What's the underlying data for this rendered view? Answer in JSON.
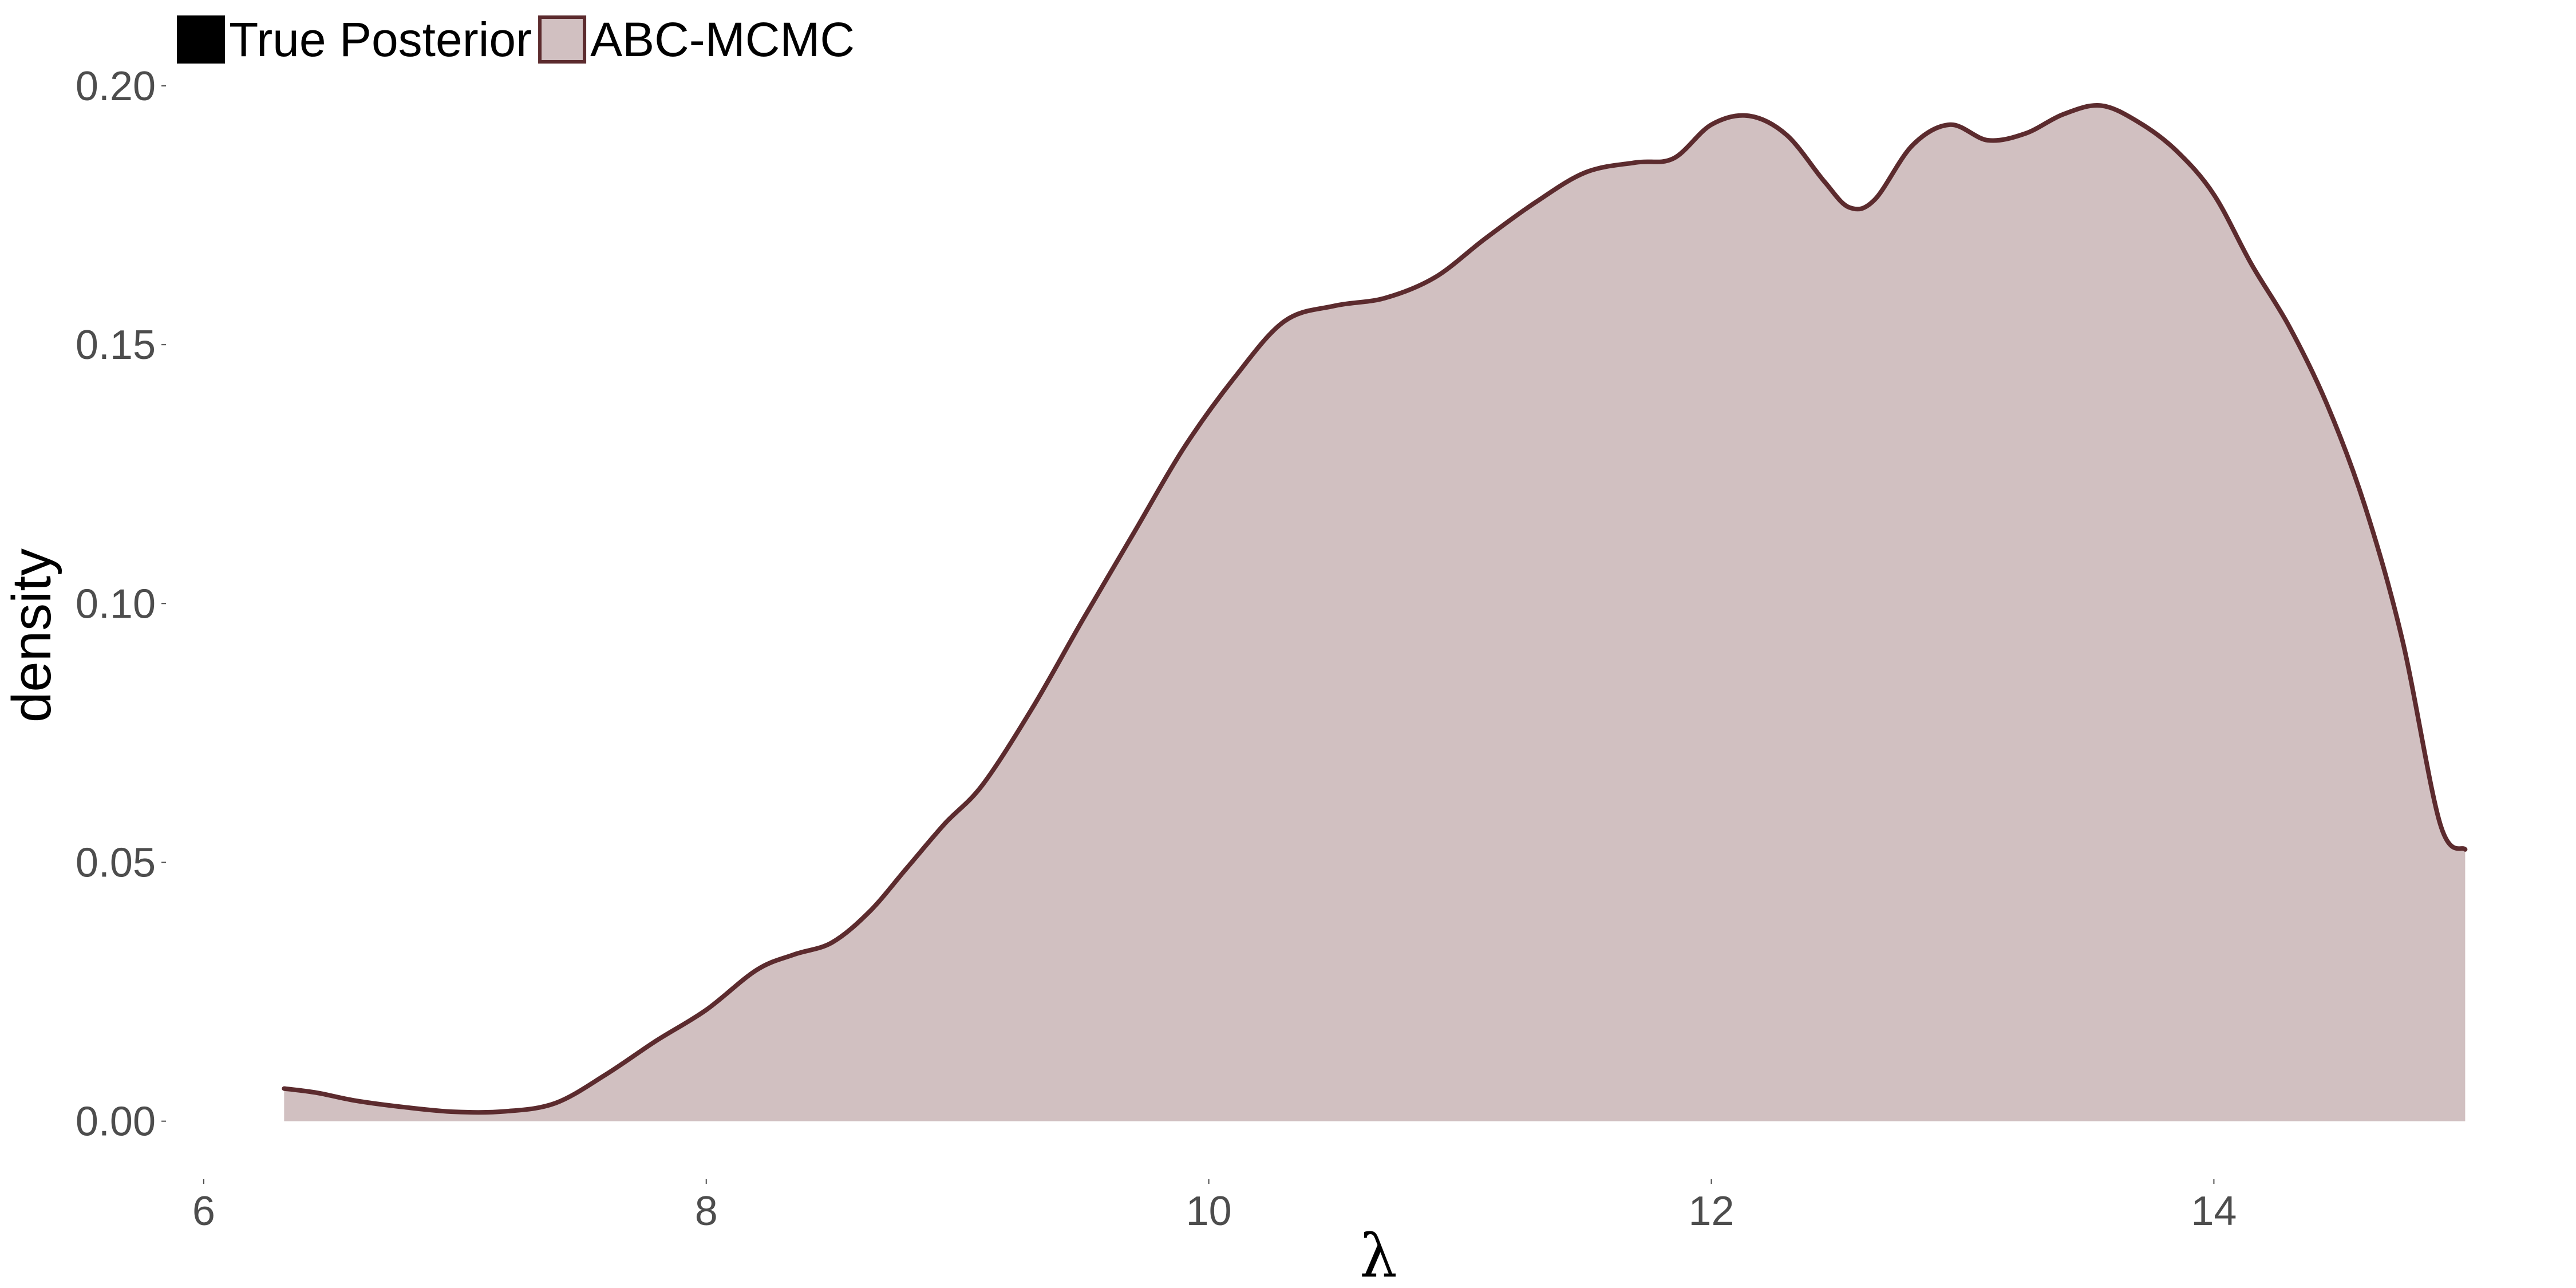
{
  "chart_data": {
    "type": "area",
    "title": "",
    "xlabel": "λ",
    "ylabel": "density",
    "xlim": [
      5.85,
      15.35
    ],
    "ylim": [
      -0.009,
      0.2
    ],
    "x_ticks": [
      6,
      8,
      10,
      12,
      14
    ],
    "x_tick_labels": [
      "6",
      "8",
      "10",
      "12",
      "14"
    ],
    "y_ticks": [
      0.0,
      0.05,
      0.1,
      0.15,
      0.2
    ],
    "y_tick_labels": [
      "0.00",
      "0.05",
      "0.10",
      "0.15",
      "0.20"
    ],
    "grid": false,
    "legend": {
      "placement": "top-left",
      "entries": [
        {
          "label": "True Posterior",
          "fill": "#000000",
          "stroke": "#000000"
        },
        {
          "label": "ABC-MCMC",
          "fill": "#d1c0c1",
          "stroke": "#5c2b2e"
        }
      ]
    },
    "series": [
      {
        "name": "ABC-MCMC",
        "fill": "#d1c0c1",
        "stroke": "#5c2b2e",
        "x": [
          6.32,
          6.45,
          6.6,
          6.8,
          7.0,
          7.2,
          7.4,
          7.6,
          7.8,
          8.0,
          8.2,
          8.35,
          8.5,
          8.65,
          8.8,
          8.95,
          9.1,
          9.3,
          9.5,
          9.7,
          9.9,
          10.1,
          10.3,
          10.5,
          10.7,
          10.9,
          11.1,
          11.3,
          11.5,
          11.7,
          11.85,
          12.0,
          12.15,
          12.3,
          12.45,
          12.55,
          12.65,
          12.8,
          12.95,
          13.1,
          13.25,
          13.4,
          13.55,
          13.7,
          13.85,
          14.0,
          14.15,
          14.3,
          14.45,
          14.6,
          14.75,
          14.9,
          15.0
        ],
        "y": [
          0.0063,
          0.0055,
          0.004,
          0.0027,
          0.0018,
          0.0019,
          0.0035,
          0.009,
          0.0155,
          0.0215,
          0.0292,
          0.0322,
          0.0345,
          0.0405,
          0.049,
          0.0575,
          0.065,
          0.08,
          0.097,
          0.1135,
          0.13,
          0.1435,
          0.1545,
          0.1575,
          0.159,
          0.163,
          0.1705,
          0.1775,
          0.1833,
          0.1852,
          0.186,
          0.1925,
          0.1942,
          0.1905,
          0.1815,
          0.1765,
          0.178,
          0.1885,
          0.1925,
          0.1895,
          0.1908,
          0.1945,
          0.1962,
          0.193,
          0.1875,
          0.179,
          0.1655,
          0.1535,
          0.1385,
          0.119,
          0.093,
          0.0575,
          0.0525
        ]
      }
    ]
  }
}
